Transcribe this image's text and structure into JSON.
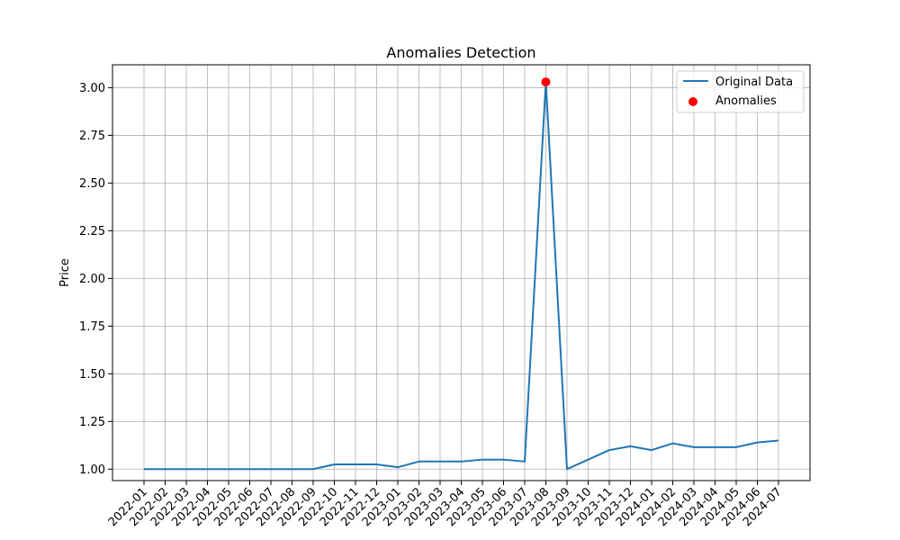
{
  "chart_data": {
    "type": "line",
    "title": "Anomalies Detection",
    "xlabel": "",
    "ylabel": "Price",
    "ylim": [
      0.94,
      3.12
    ],
    "yticks": [
      1.0,
      1.25,
      1.5,
      1.75,
      2.0,
      2.25,
      2.5,
      2.75,
      3.0
    ],
    "ytick_labels": [
      "1.00",
      "1.25",
      "1.50",
      "1.75",
      "2.00",
      "2.25",
      "2.50",
      "2.75",
      "3.00"
    ],
    "grid": true,
    "legend_position": "top-right",
    "x": [
      "2022-01",
      "2022-02",
      "2022-03",
      "2022-04",
      "2022-05",
      "2022-06",
      "2022-07",
      "2022-08",
      "2022-09",
      "2022-10",
      "2022-11",
      "2022-12",
      "2023-01",
      "2023-02",
      "2023-03",
      "2023-04",
      "2023-05",
      "2023-06",
      "2023-07",
      "2023-08",
      "2023-09",
      "2023-10",
      "2023-11",
      "2023-12",
      "2024-01",
      "2024-02",
      "2024-03",
      "2024-04",
      "2024-05",
      "2024-06",
      "2024-07"
    ],
    "series": [
      {
        "name": "Original Data",
        "kind": "line",
        "color": "#1f77b4",
        "values": [
          1.0,
          1.0,
          1.0,
          1.0,
          1.0,
          1.0,
          1.0,
          1.0,
          1.0,
          1.025,
          1.025,
          1.025,
          1.01,
          1.04,
          1.04,
          1.04,
          1.05,
          1.05,
          1.04,
          3.03,
          1.0,
          1.05,
          1.1,
          1.12,
          1.1,
          1.135,
          1.115,
          1.115,
          1.115,
          1.14,
          1.15
        ]
      },
      {
        "name": "Anomalies",
        "kind": "scatter",
        "color": "#ff0000",
        "points": [
          {
            "x": "2023-08",
            "y": 3.03
          }
        ]
      }
    ]
  }
}
